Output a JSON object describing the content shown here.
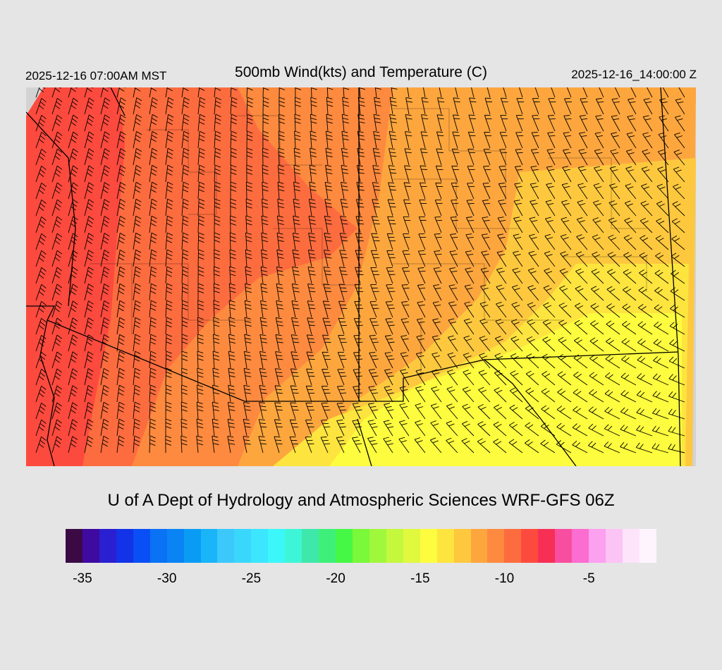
{
  "header": {
    "valid_local": "2025-12-16 07:00AM MST",
    "title": "500mb Wind(kts) and Temperature (C)",
    "valid_utc": "2025-12-16_14:00:00 Z"
  },
  "credit": "U of A Dept of Hydrology and Atmospheric Sciences WRF-GFS 06Z",
  "colorbar": {
    "colors": [
      "#3b0a45",
      "#3f0aa0",
      "#2a1fd1",
      "#1333e8",
      "#0a4ff5",
      "#0a72f5",
      "#0a84f5",
      "#0a9cf5",
      "#1ab4f8",
      "#3cc8fb",
      "#3ad7fc",
      "#3be6fe",
      "#3cf7f9",
      "#3df6d7",
      "#3ee8aa",
      "#3ef07a",
      "#46f846",
      "#7af83a",
      "#a0f83c",
      "#c4f83c",
      "#e0f83e",
      "#fdfc3e",
      "#fde43e",
      "#fdc83e",
      "#fda63e",
      "#fd8a3e",
      "#fd6c3e",
      "#fd4a3e",
      "#f72f55",
      "#f84ea0",
      "#fb6dd0",
      "#fca0f0",
      "#fcc4f5",
      "#fde4fb",
      "#fef4fe"
    ],
    "tick_labels": [
      "-35",
      "-30",
      "-25",
      "-20",
      "-15",
      "-10",
      "-5"
    ],
    "tick_values": [
      -35,
      -30,
      -25,
      -20,
      -15,
      -10,
      -5
    ],
    "min": -36,
    "max": -1
  },
  "map": {
    "variable": "500mb temperature (C) with wind barbs (kts)",
    "temperature_range_shown": [
      -13,
      -5
    ],
    "background_color": "#d3d3d3",
    "field_colors": {
      "coldest": "#fd4a3e",
      "mid": "#fd8a3e",
      "warm": "#fda63e",
      "warmest": "#fdfc3e"
    }
  }
}
